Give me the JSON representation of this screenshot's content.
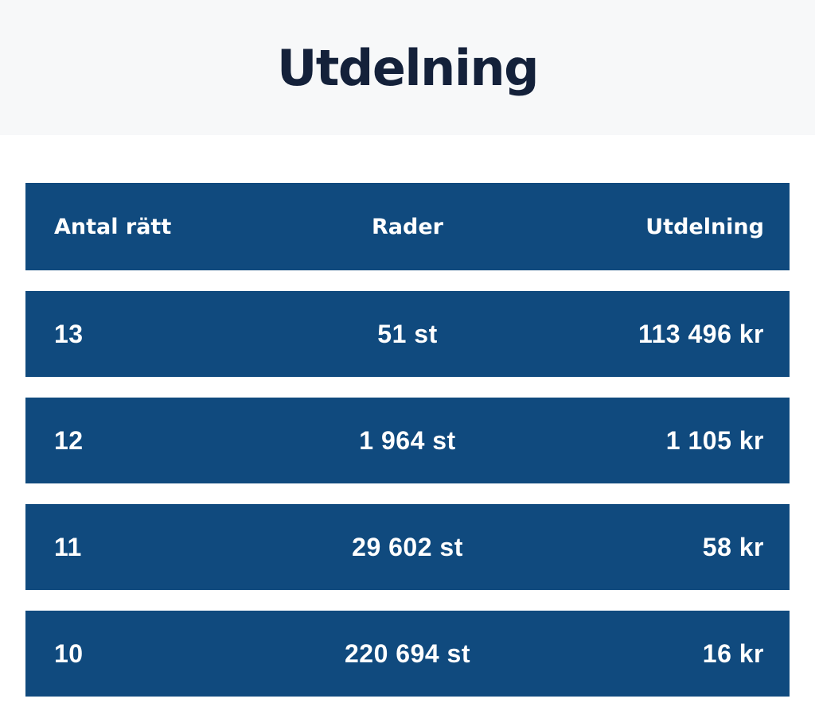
{
  "page": {
    "title": "Utdelning"
  },
  "colors": {
    "row_blue": "#104a7e",
    "title_navy": "#14213a",
    "hero_background": "#f7f8f9",
    "row_text": "#ffffff"
  },
  "table": {
    "columns": [
      {
        "label": "Antal rätt"
      },
      {
        "label": "Rader"
      },
      {
        "label": "Utdelning"
      }
    ],
    "rows": [
      {
        "antal_ratt": "13",
        "rader": "51 st",
        "utdelning": "113 496 kr"
      },
      {
        "antal_ratt": "12",
        "rader": "1 964 st",
        "utdelning": "1 105 kr"
      },
      {
        "antal_ratt": "11",
        "rader": "29 602 st",
        "utdelning": "58 kr"
      },
      {
        "antal_ratt": "10",
        "rader": "220 694 st",
        "utdelning": "16 kr"
      }
    ]
  }
}
